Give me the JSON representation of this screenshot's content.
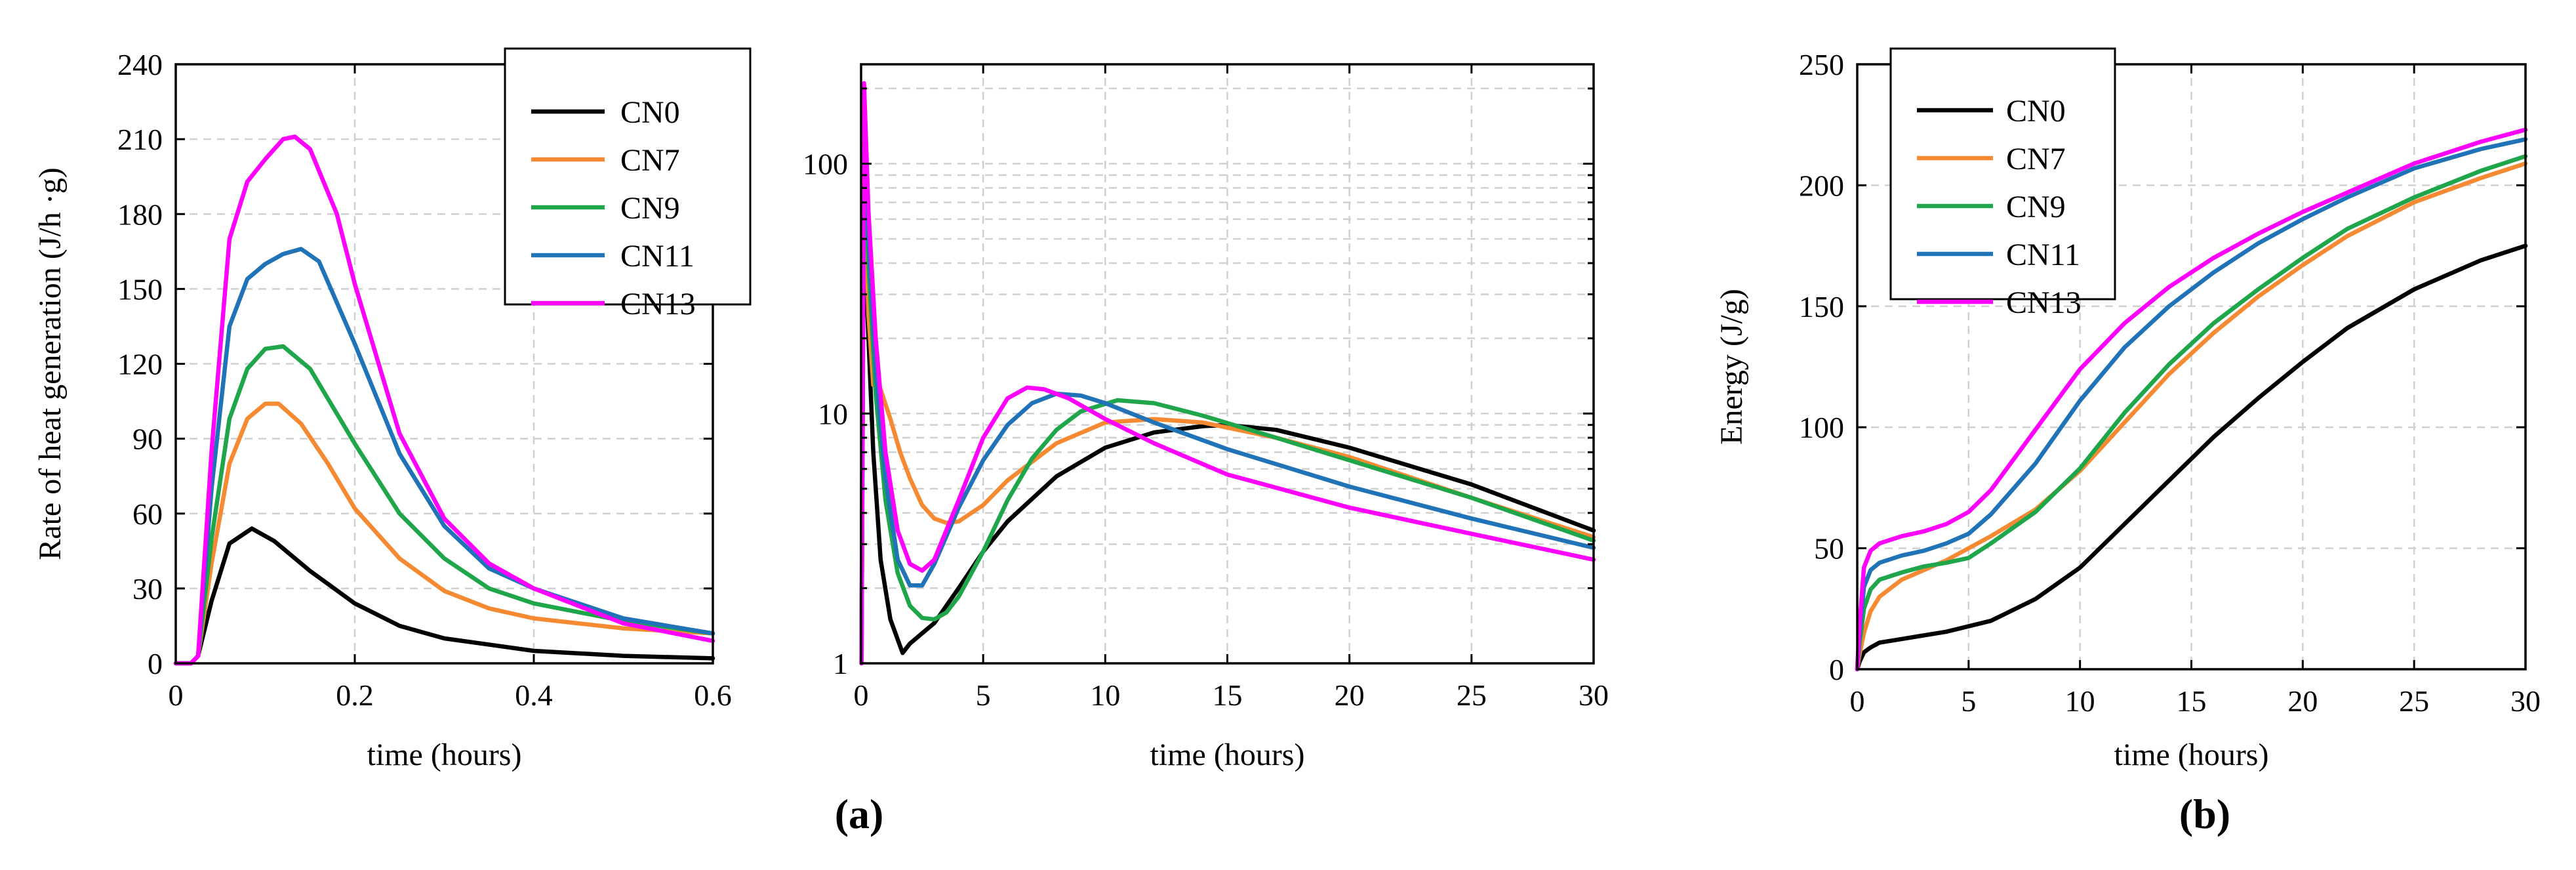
{
  "colors": {
    "CN0": "#000000",
    "CN7": "#f58a32",
    "CN9": "#1fa64a",
    "CN11": "#2173b8",
    "CN13": "#ff00ff"
  },
  "panel_labels": {
    "a": "(a)",
    "b": "(b)"
  },
  "chart_data": [
    {
      "id": "chart1",
      "type": "line",
      "title": "",
      "xlabel": "time (hours)",
      "ylabel": "Rate of heat generation (J/h ·g)",
      "xlim": [
        0,
        0.6
      ],
      "ylim": [
        0,
        240
      ],
      "xticks": [
        0,
        0.2,
        0.4,
        0.6
      ],
      "xtick_labels": [
        "0",
        "0.2",
        "0.4",
        "0.6"
      ],
      "yticks": [
        0,
        30,
        60,
        90,
        120,
        150,
        180,
        210,
        240
      ],
      "ytick_labels": [
        "0",
        "30",
        "60",
        "90",
        "120",
        "150",
        "180",
        "210",
        "240"
      ],
      "grid": true,
      "legend": {
        "position": "top-right",
        "entries": [
          "CN0",
          "CN7",
          "CN9",
          "CN11",
          "CN13"
        ]
      },
      "series": [
        {
          "name": "CN0",
          "x": [
            0,
            0.017,
            0.025,
            0.04,
            0.06,
            0.085,
            0.11,
            0.15,
            0.2,
            0.25,
            0.3,
            0.4,
            0.5,
            0.6
          ],
          "y": [
            0,
            0,
            3,
            25,
            48,
            54,
            49,
            37,
            24,
            15,
            10,
            5,
            3,
            2
          ]
        },
        {
          "name": "CN7",
          "x": [
            0,
            0.017,
            0.025,
            0.04,
            0.06,
            0.08,
            0.1,
            0.115,
            0.14,
            0.17,
            0.2,
            0.25,
            0.3,
            0.35,
            0.4,
            0.5,
            0.6
          ],
          "y": [
            0,
            0,
            3,
            40,
            80,
            98,
            104,
            104,
            96,
            80,
            62,
            42,
            29,
            22,
            18,
            14,
            12
          ]
        },
        {
          "name": "CN9",
          "x": [
            0,
            0.017,
            0.025,
            0.04,
            0.06,
            0.08,
            0.1,
            0.12,
            0.15,
            0.2,
            0.25,
            0.3,
            0.35,
            0.4,
            0.5,
            0.6
          ],
          "y": [
            0,
            0,
            3,
            50,
            98,
            118,
            126,
            127,
            118,
            88,
            60,
            42,
            30,
            24,
            17,
            12
          ]
        },
        {
          "name": "CN11",
          "x": [
            0,
            0.017,
            0.025,
            0.04,
            0.06,
            0.08,
            0.1,
            0.12,
            0.14,
            0.16,
            0.2,
            0.25,
            0.3,
            0.35,
            0.4,
            0.5,
            0.6
          ],
          "y": [
            0,
            0,
            3,
            70,
            135,
            154,
            160,
            164,
            166,
            161,
            128,
            84,
            55,
            38,
            30,
            18,
            12
          ]
        },
        {
          "name": "CN13",
          "x": [
            0,
            0.017,
            0.025,
            0.04,
            0.06,
            0.08,
            0.1,
            0.12,
            0.133,
            0.15,
            0.18,
            0.2,
            0.25,
            0.3,
            0.35,
            0.4,
            0.5,
            0.6
          ],
          "y": [
            0,
            0,
            3,
            85,
            170,
            193,
            202,
            210,
            211,
            206,
            180,
            152,
            92,
            58,
            40,
            30,
            16,
            9
          ]
        }
      ]
    },
    {
      "id": "chart2",
      "type": "line",
      "title": "",
      "xlabel": "time (hours)",
      "ylabel": "",
      "xlim": [
        0,
        30
      ],
      "ylim": [
        1,
        250
      ],
      "yscale": "log",
      "xticks": [
        0,
        5,
        10,
        15,
        20,
        25,
        30
      ],
      "xtick_labels": [
        "0",
        "5",
        "10",
        "15",
        "20",
        "25",
        "30"
      ],
      "yticks": [
        1,
        10,
        100
      ],
      "ytick_labels": [
        "1",
        "10",
        "100"
      ],
      "grid": true,
      "series": [
        {
          "name": "CN0",
          "x": [
            0.02,
            0.08,
            0.2,
            0.5,
            0.8,
            1.2,
            1.7,
            2.0,
            3.0,
            4.0,
            5.0,
            6.0,
            8.0,
            10.0,
            12.0,
            14.0,
            15.0,
            17.0,
            20.0,
            25.0,
            30.0
          ],
          "y": [
            1.0,
            54,
            35,
            7,
            2.6,
            1.5,
            1.1,
            1.2,
            1.45,
            2.0,
            2.8,
            3.7,
            5.6,
            7.3,
            8.4,
            8.9,
            9.0,
            8.6,
            7.3,
            5.2,
            3.4
          ]
        },
        {
          "name": "CN7",
          "x": [
            0.02,
            0.12,
            0.3,
            0.5,
            0.8,
            1.2,
            1.6,
            2.0,
            2.5,
            3.0,
            3.5,
            4.0,
            5.0,
            6.0,
            8.0,
            10.0,
            12.0,
            14.0,
            17.0,
            20.0,
            25.0,
            30.0
          ],
          "y": [
            1.0,
            120,
            25,
            13,
            12.5,
            9.5,
            7.0,
            5.5,
            4.3,
            3.8,
            3.65,
            3.7,
            4.3,
            5.4,
            7.6,
            9.2,
            9.5,
            9.2,
            8.0,
            6.7,
            4.6,
            3.2
          ]
        },
        {
          "name": "CN9",
          "x": [
            0.02,
            0.12,
            0.3,
            0.6,
            1.0,
            1.5,
            2.0,
            2.5,
            3.0,
            3.5,
            4.0,
            5.0,
            6.0,
            7.0,
            8.0,
            9.0,
            10.5,
            12.0,
            14.0,
            17.0,
            20.0,
            25.0,
            30.0
          ],
          "y": [
            1.0,
            130,
            40,
            12,
            4.5,
            2.3,
            1.7,
            1.52,
            1.5,
            1.6,
            1.85,
            2.8,
            4.5,
            6.6,
            8.6,
            10.2,
            11.3,
            11.0,
            9.8,
            8.0,
            6.5,
            4.6,
            3.1
          ]
        },
        {
          "name": "CN11",
          "x": [
            0.02,
            0.12,
            0.3,
            0.6,
            1.0,
            1.5,
            2.0,
            2.5,
            3.0,
            4.0,
            5.0,
            6.0,
            7.0,
            8.0,
            9.0,
            10.0,
            12.0,
            15.0,
            20.0,
            25.0,
            30.0
          ],
          "y": [
            1.0,
            150,
            50,
            15,
            5.5,
            2.6,
            2.05,
            2.05,
            2.5,
            4.2,
            6.5,
            9.0,
            11.0,
            12.0,
            11.8,
            11.0,
            9.2,
            7.2,
            5.1,
            3.8,
            2.9
          ]
        },
        {
          "name": "CN13",
          "x": [
            0.02,
            0.12,
            0.3,
            0.6,
            1.0,
            1.5,
            2.0,
            2.5,
            3.0,
            4.0,
            5.0,
            6.0,
            6.8,
            7.5,
            8.5,
            10.0,
            12.0,
            15.0,
            20.0,
            25.0,
            30.0
          ],
          "y": [
            1.0,
            210,
            65,
            20,
            7.0,
            3.4,
            2.5,
            2.35,
            2.6,
            4.5,
            8.0,
            11.5,
            12.7,
            12.5,
            11.5,
            9.5,
            7.6,
            5.7,
            4.2,
            3.3,
            2.6
          ]
        }
      ]
    },
    {
      "id": "chart3",
      "type": "line",
      "title": "",
      "xlabel": "time (hours)",
      "ylabel": "Energy (J/g)",
      "xlim": [
        0,
        30
      ],
      "ylim": [
        0,
        250
      ],
      "xticks": [
        0,
        5,
        10,
        15,
        20,
        25,
        30
      ],
      "xtick_labels": [
        "0",
        "5",
        "10",
        "15",
        "20",
        "25",
        "30"
      ],
      "yticks": [
        0,
        50,
        100,
        150,
        200,
        250
      ],
      "ytick_labels": [
        "0",
        "50",
        "100",
        "150",
        "200",
        "250"
      ],
      "grid": true,
      "legend": {
        "position": "top-left",
        "entries": [
          "CN0",
          "CN7",
          "CN9",
          "CN11",
          "CN13"
        ]
      },
      "series": [
        {
          "name": "CN0",
          "x": [
            0,
            0.1,
            0.3,
            0.6,
            1,
            2,
            4,
            6,
            8,
            10,
            12,
            14,
            16,
            18,
            20,
            22,
            25,
            28,
            30
          ],
          "y": [
            0,
            3,
            7,
            9,
            11,
            12.5,
            15.5,
            20,
            29,
            42,
            60,
            78,
            96,
            112,
            127,
            141,
            157,
            169,
            175
          ]
        },
        {
          "name": "CN7",
          "x": [
            0,
            0.1,
            0.3,
            0.6,
            1,
            2,
            4,
            6,
            8,
            10,
            12,
            14,
            16,
            18,
            20,
            22,
            25,
            28,
            30
          ],
          "y": [
            0,
            6,
            15,
            24,
            30,
            37,
            45,
            55,
            66,
            82,
            102,
            122,
            139,
            154,
            167,
            179,
            193,
            203,
            209
          ]
        },
        {
          "name": "CN9",
          "x": [
            0,
            0.1,
            0.3,
            0.6,
            1,
            2,
            3,
            4,
            5,
            6,
            8,
            10,
            12,
            14,
            16,
            18,
            20,
            22,
            25,
            28,
            30
          ],
          "y": [
            0,
            10,
            25,
            33,
            37,
            40,
            42.5,
            44,
            46,
            52,
            65,
            83,
            106,
            126,
            143,
            157,
            170,
            182,
            195,
            206,
            212
          ]
        },
        {
          "name": "CN11",
          "x": [
            0,
            0.1,
            0.3,
            0.6,
            1,
            2,
            3,
            4,
            5,
            6,
            8,
            10,
            12,
            14,
            16,
            18,
            20,
            22,
            25,
            28,
            30
          ],
          "y": [
            0,
            14,
            34,
            41,
            44,
            47,
            49,
            52,
            56,
            64,
            85,
            111,
            133,
            150,
            164,
            176,
            186,
            195,
            207,
            215,
            219
          ]
        },
        {
          "name": "CN13",
          "x": [
            0,
            0.1,
            0.3,
            0.6,
            1,
            2,
            3,
            4,
            5,
            6,
            8,
            10,
            12,
            14,
            16,
            18,
            20,
            22,
            25,
            28,
            30
          ],
          "y": [
            0,
            18,
            42,
            49,
            52,
            55,
            57,
            60,
            65,
            74,
            99,
            124,
            143,
            158,
            170,
            180,
            189,
            197,
            209,
            218,
            223
          ]
        }
      ]
    }
  ]
}
